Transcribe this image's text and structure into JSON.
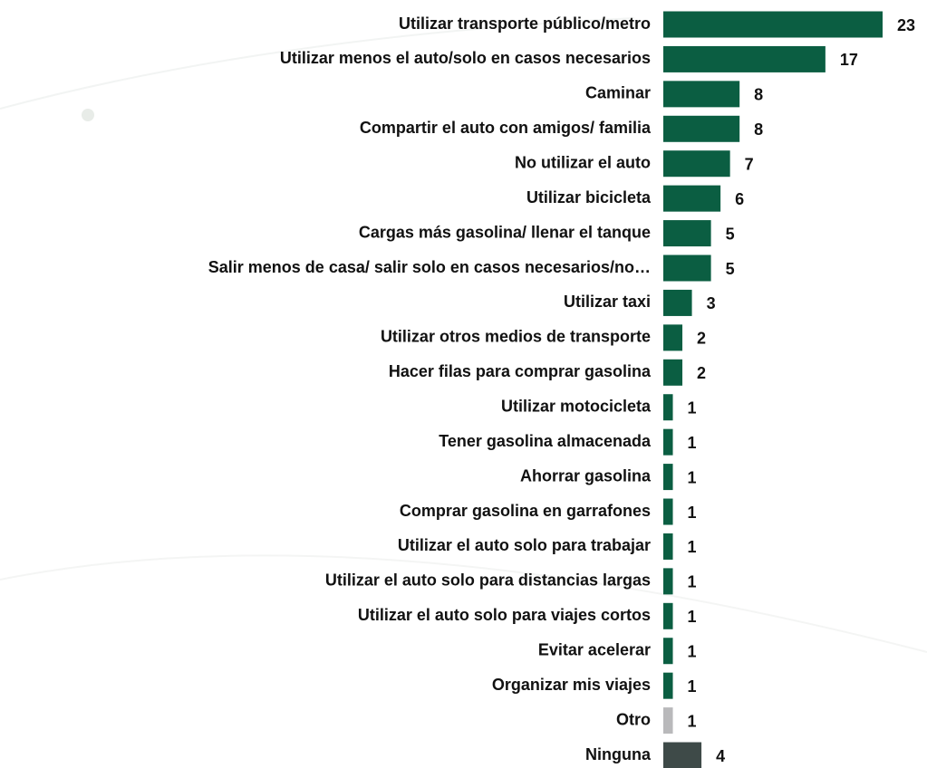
{
  "chart_data": {
    "type": "bar",
    "orientation": "horizontal",
    "categories": [
      "Utilizar transporte público/metro",
      "Utilizar menos el auto/solo en casos necesarios",
      "Caminar",
      "Compartir el auto con amigos/ familia",
      "No utilizar el auto",
      "Utilizar bicicleta",
      "Cargas más gasolina/ llenar el tanque",
      "Salir menos de casa/ salir solo en casos necesarios/no…",
      "Utilizar taxi",
      "Utilizar otros medios de transporte",
      "Hacer filas para comprar gasolina",
      "Utilizar motocicleta",
      "Tener gasolina almacenada",
      "Ahorrar gasolina",
      "Comprar gasolina en garrafones",
      "Utilizar el auto solo para trabajar",
      "Utilizar el auto solo para distancias largas",
      "Utilizar el auto solo para viajes cortos",
      "Evitar acelerar",
      "Organizar mis viajes",
      "Otro",
      "Ninguna"
    ],
    "values": [
      23,
      17,
      8,
      8,
      7,
      6,
      5,
      5,
      3,
      2,
      2,
      1,
      1,
      1,
      1,
      1,
      1,
      1,
      1,
      1,
      1,
      4
    ],
    "colors": [
      "#0b5e42",
      "#0b5e42",
      "#0b5e42",
      "#0b5e42",
      "#0b5e42",
      "#0b5e42",
      "#0b5e42",
      "#0b5e42",
      "#0b5e42",
      "#0b5e42",
      "#0b5e42",
      "#0b5e42",
      "#0b5e42",
      "#0b5e42",
      "#0b5e42",
      "#0b5e42",
      "#0b5e42",
      "#0b5e42",
      "#0b5e42",
      "#0b5e42",
      "#b9b9bb",
      "#3e4a48"
    ]
  }
}
